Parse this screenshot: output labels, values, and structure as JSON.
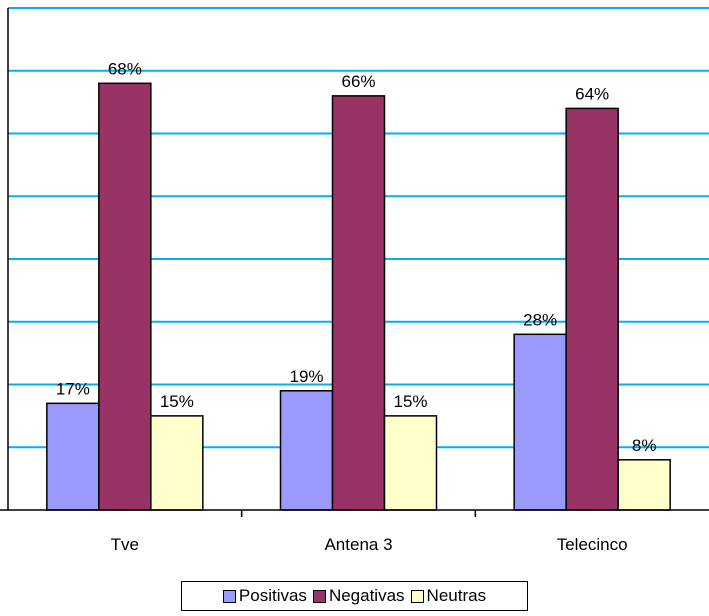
{
  "chart_data": {
    "type": "bar",
    "categories": [
      "Tve",
      "Antena 3",
      "Telecinco"
    ],
    "series": [
      {
        "name": "Positivas",
        "values": [
          17,
          19,
          28
        ],
        "labels": [
          "17%",
          "19%",
          "28%"
        ],
        "color": "#9999ff"
      },
      {
        "name": "Negativas",
        "values": [
          68,
          66,
          64
        ],
        "labels": [
          "68%",
          "66%",
          "64%"
        ],
        "color": "#993366"
      },
      {
        "name": "Neutras",
        "values": [
          15,
          15,
          8
        ],
        "labels": [
          "15%",
          "15%",
          "8%"
        ],
        "color": "#ffffcc"
      }
    ],
    "ylim": [
      0,
      80
    ],
    "y_gridline_step": 10,
    "gridlines": true,
    "gridline_color": "#00b0f0",
    "y_axis_tick_labels_shown": false,
    "legend_position": "bottom"
  }
}
